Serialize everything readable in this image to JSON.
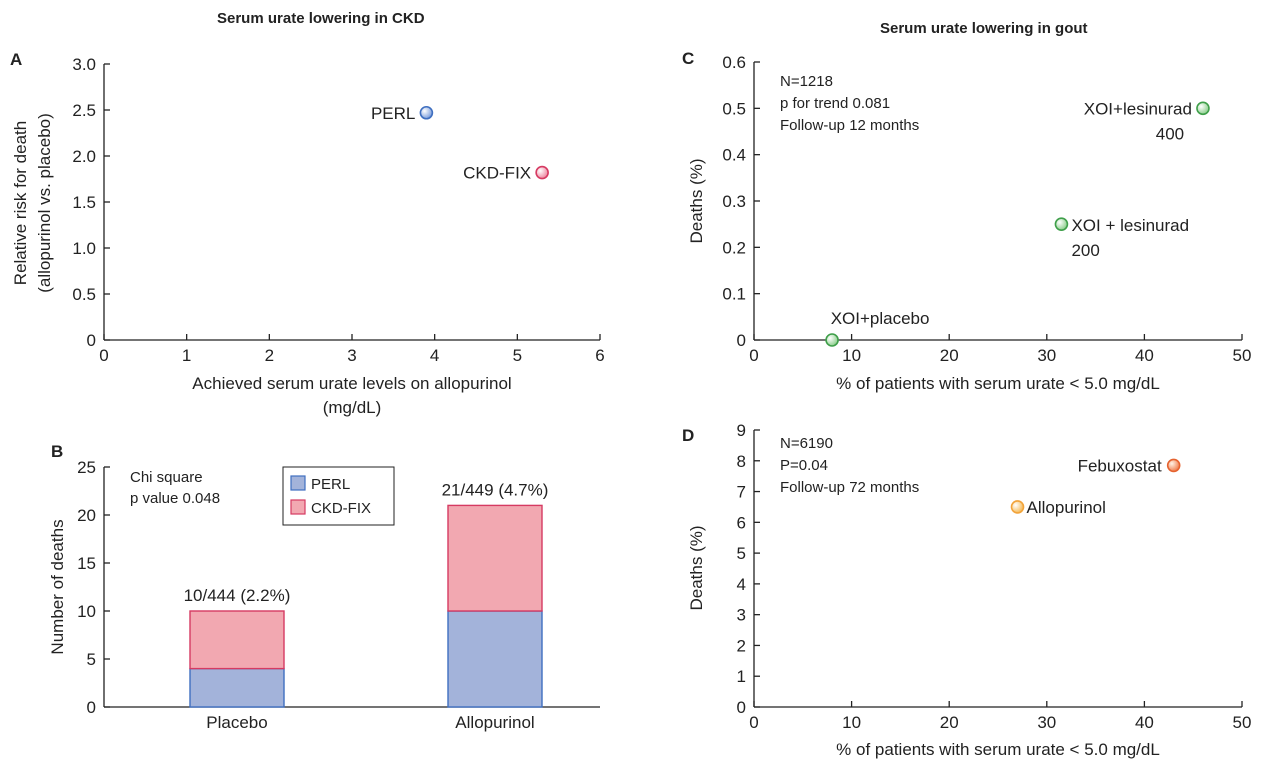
{
  "titles": {
    "ckd": "Serum urate lowering in CKD",
    "gout": "Serum urate lowering in gout"
  },
  "panels": {
    "a": "A",
    "b": "B",
    "c": "C",
    "d": "D"
  },
  "colors": {
    "perl": "#3f6fc0",
    "perl_fill": "#a3b3da",
    "ckdfix": "#d63a62",
    "ckdfix_fill": "#f2a8b1",
    "green": "#3f9f4a",
    "orange_dark": "#e5622f",
    "orange_light": "#f2a33a"
  },
  "chart_data": [
    {
      "id": "A",
      "type": "scatter",
      "xlabel": "Achieved serum urate levels on allopurinol",
      "xlabel2": "(mg/dL)",
      "ylabel": "Relative risk for death",
      "ylabel2": "(allopurinol vs. placebo)",
      "xlim": [
        0,
        6
      ],
      "ylim": [
        0,
        3.0
      ],
      "xticks": [
        "0",
        "1",
        "2",
        "3",
        "4",
        "5",
        "6"
      ],
      "yticks": [
        "0",
        "0.5",
        "1.0",
        "1.5",
        "2.0",
        "2.5",
        "3.0"
      ],
      "points": [
        {
          "label": "PERL",
          "x": 3.9,
          "y": 2.47,
          "color": "#3f6fc0"
        },
        {
          "label": "CKD-FIX",
          "x": 5.3,
          "y": 1.82,
          "color": "#d63a62"
        }
      ]
    },
    {
      "id": "B",
      "type": "bar",
      "stacked": true,
      "ylabel": "Number of deaths",
      "ylim": [
        0,
        25
      ],
      "yticks": [
        "0",
        "5",
        "10",
        "15",
        "20",
        "25"
      ],
      "categories": [
        "Placebo",
        "Allopurinol"
      ],
      "series": [
        {
          "name": "PERL",
          "values": [
            4,
            10
          ]
        },
        {
          "name": "CKD-FIX",
          "values": [
            6,
            11
          ]
        }
      ],
      "bar_labels": [
        "10/444 (2.2%)",
        "21/449 (4.7%)"
      ],
      "annotation": [
        "Chi square",
        "p value 0.048"
      ],
      "legend": "top-center"
    },
    {
      "id": "C",
      "type": "scatter",
      "xlabel": "% of patients with serum urate < 5.0 mg/dL",
      "ylabel": "Deaths (%)",
      "xlim": [
        0,
        50
      ],
      "ylim": [
        0,
        0.6
      ],
      "xticks": [
        "0",
        "10",
        "20",
        "30",
        "40",
        "50"
      ],
      "yticks": [
        "0",
        "0.1",
        "0.2",
        "0.3",
        "0.4",
        "0.5",
        "0.6"
      ],
      "annotation": [
        "N=1218",
        "p for trend 0.081",
        "Follow-up 12 months"
      ],
      "points": [
        {
          "label": "XOI+placebo",
          "x": 8,
          "y": 0.0
        },
        {
          "label": "XOI + lesinurad",
          "label2": "200",
          "x": 31.5,
          "y": 0.25
        },
        {
          "label": "XOI+lesinurad",
          "label2": "400",
          "x": 46,
          "y": 0.5
        }
      ]
    },
    {
      "id": "D",
      "type": "scatter",
      "xlabel": "% of patients with serum urate < 5.0 mg/dL",
      "ylabel": "Deaths (%)",
      "xlim": [
        0,
        50
      ],
      "ylim": [
        0,
        9
      ],
      "xticks": [
        "0",
        "10",
        "20",
        "30",
        "40",
        "50"
      ],
      "yticks": [
        "0",
        "1",
        "2",
        "3",
        "4",
        "5",
        "6",
        "7",
        "8",
        "9"
      ],
      "annotation": [
        "N=6190",
        "P=0.04",
        "Follow-up 72 months"
      ],
      "points": [
        {
          "label": "Febuxostat",
          "x": 43,
          "y": 7.85
        },
        {
          "label": "Allopurinol",
          "x": 27,
          "y": 6.5
        }
      ]
    }
  ]
}
